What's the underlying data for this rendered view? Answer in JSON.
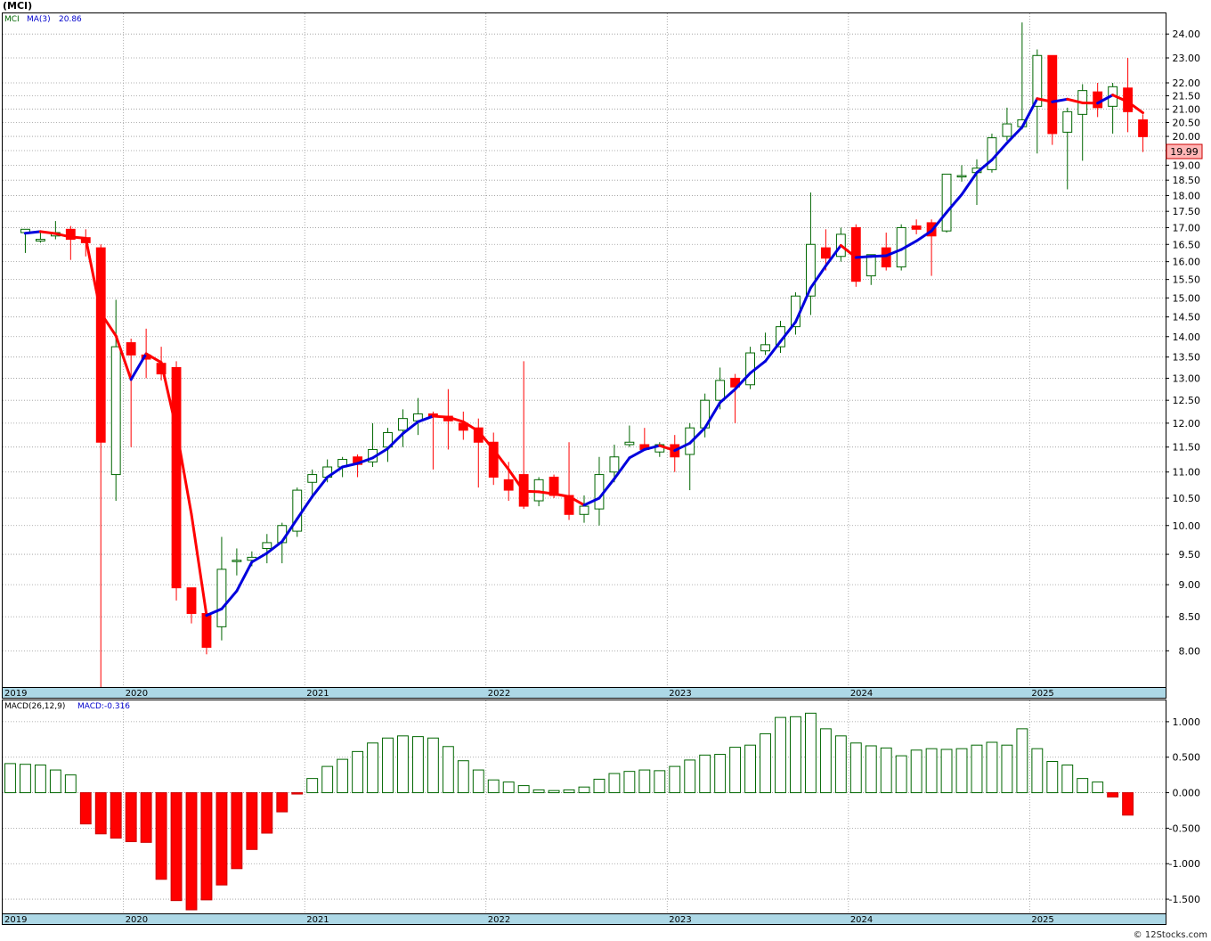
{
  "title": "(MCI)",
  "footer": "© 12Stocks.com",
  "price_panel": {
    "legend_symbol": "MCI",
    "legend_ma": "MA(3)",
    "legend_value": "20.86",
    "last_price": "19.99"
  },
  "macd_panel": {
    "legend_label": "MACD(26,12,9)",
    "legend_value": "MACD:-0.316"
  },
  "colors": {
    "up": "#006600",
    "down": "#ff0000",
    "ma_up": "#0000dd",
    "ma_down": "#ff0000",
    "axis_band": "#add8e6",
    "grid": "#999999"
  },
  "chart_data": [
    {
      "type": "candlestick",
      "title": "",
      "interval": "monthly",
      "y_scale": "log",
      "ylim": [
        7.5,
        24.9
      ],
      "y_ticks": [
        8.0,
        8.5,
        9.0,
        9.5,
        10.0,
        10.5,
        11.0,
        11.5,
        12.0,
        12.5,
        13.0,
        13.5,
        14.0,
        14.5,
        15.0,
        15.5,
        16.0,
        16.5,
        17.0,
        17.5,
        18.0,
        18.5,
        19.0,
        19.5,
        20.0,
        20.5,
        21.0,
        21.5,
        22.0,
        23.0,
        24.0
      ],
      "x_labels": [
        "2019",
        "2020",
        "2021",
        "2022",
        "2023",
        "2024",
        "2025"
      ],
      "ma_label": "MA(3)",
      "ma_last": 20.86,
      "grid": true,
      "candles": [
        [
          16.85,
          16.95,
          16.25,
          16.95
        ],
        [
          16.6,
          16.9,
          16.55,
          16.65
        ],
        [
          16.75,
          17.2,
          16.65,
          16.85
        ],
        [
          16.95,
          17.05,
          16.05,
          16.65
        ],
        [
          16.7,
          16.95,
          16.15,
          16.55
        ],
        [
          16.4,
          16.5,
          7.45,
          11.6
        ],
        [
          10.95,
          14.95,
          10.45,
          13.75
        ],
        [
          13.85,
          13.95,
          11.5,
          13.55
        ],
        [
          13.55,
          14.2,
          13.0,
          13.45
        ],
        [
          13.35,
          13.75,
          12.95,
          13.1
        ],
        [
          13.25,
          13.4,
          8.75,
          8.95
        ],
        [
          8.95,
          8.95,
          8.4,
          8.55
        ],
        [
          8.55,
          8.6,
          7.95,
          8.05
        ],
        [
          8.35,
          9.8,
          8.15,
          9.25
        ],
        [
          9.4,
          9.6,
          9.15,
          9.4
        ],
        [
          9.4,
          9.55,
          9.3,
          9.45
        ],
        [
          9.6,
          9.85,
          9.35,
          9.7
        ],
        [
          9.7,
          10.05,
          9.35,
          10.0
        ],
        [
          9.9,
          10.7,
          9.8,
          10.65
        ],
        [
          10.8,
          11.05,
          10.55,
          10.95
        ],
        [
          10.9,
          11.25,
          10.8,
          11.1
        ],
        [
          11.1,
          11.3,
          10.9,
          11.25
        ],
        [
          11.3,
          11.35,
          10.9,
          11.15
        ],
        [
          11.2,
          12.0,
          11.1,
          11.45
        ],
        [
          11.5,
          11.9,
          11.2,
          11.8
        ],
        [
          11.85,
          12.3,
          11.5,
          12.1
        ],
        [
          12.05,
          12.55,
          11.75,
          12.2
        ],
        [
          12.2,
          12.25,
          11.05,
          12.15
        ],
        [
          12.15,
          12.75,
          11.45,
          12.05
        ],
        [
          12.0,
          12.25,
          11.65,
          11.85
        ],
        [
          11.9,
          12.1,
          10.7,
          11.6
        ],
        [
          11.6,
          11.8,
          10.75,
          10.9
        ],
        [
          10.85,
          11.2,
          10.45,
          10.65
        ],
        [
          10.95,
          13.4,
          10.3,
          10.35
        ],
        [
          10.45,
          10.9,
          10.35,
          10.85
        ],
        [
          10.9,
          10.95,
          10.5,
          10.55
        ],
        [
          10.55,
          11.6,
          10.1,
          10.2
        ],
        [
          10.2,
          10.55,
          10.05,
          10.35
        ],
        [
          10.3,
          11.3,
          10.0,
          10.95
        ],
        [
          11.0,
          11.55,
          10.8,
          11.3
        ],
        [
          11.55,
          11.95,
          11.5,
          11.6
        ],
        [
          11.55,
          11.9,
          11.45,
          11.45
        ],
        [
          11.4,
          11.6,
          11.3,
          11.55
        ],
        [
          11.55,
          11.75,
          11.0,
          11.3
        ],
        [
          11.35,
          12.0,
          10.65,
          11.9
        ],
        [
          11.9,
          12.65,
          11.7,
          12.5
        ],
        [
          12.5,
          13.25,
          12.3,
          12.95
        ],
        [
          13.0,
          13.1,
          12.0,
          12.8
        ],
        [
          12.85,
          13.75,
          12.75,
          13.6
        ],
        [
          13.65,
          14.1,
          13.55,
          13.8
        ],
        [
          13.75,
          14.4,
          13.6,
          14.25
        ],
        [
          14.25,
          15.15,
          14.05,
          15.05
        ],
        [
          15.05,
          18.1,
          14.55,
          16.5
        ],
        [
          16.4,
          16.95,
          15.75,
          16.1
        ],
        [
          16.15,
          17.0,
          16.0,
          16.8
        ],
        [
          17.0,
          17.1,
          15.3,
          15.45
        ],
        [
          15.6,
          16.2,
          15.35,
          16.2
        ],
        [
          16.4,
          16.85,
          15.75,
          15.85
        ],
        [
          15.85,
          17.1,
          15.75,
          17.0
        ],
        [
          17.05,
          17.25,
          16.8,
          16.95
        ],
        [
          17.15,
          17.25,
          15.6,
          16.75
        ],
        [
          16.9,
          18.65,
          16.85,
          18.7
        ],
        [
          18.65,
          19.0,
          18.45,
          18.65
        ],
        [
          18.75,
          19.2,
          17.7,
          18.9
        ],
        [
          18.85,
          20.1,
          18.75,
          19.95
        ],
        [
          20.0,
          21.05,
          19.85,
          20.45
        ],
        [
          20.35,
          24.5,
          20.25,
          20.6
        ],
        [
          21.1,
          23.35,
          19.4,
          23.1
        ],
        [
          23.1,
          23.1,
          19.7,
          20.1
        ],
        [
          20.15,
          21.05,
          18.2,
          20.9
        ],
        [
          20.8,
          21.95,
          19.15,
          21.7
        ],
        [
          21.65,
          22.0,
          20.7,
          21.05
        ],
        [
          21.1,
          22.0,
          20.1,
          21.85
        ],
        [
          21.8,
          23.0,
          20.15,
          20.9
        ],
        [
          20.6,
          20.8,
          19.45,
          19.99
        ]
      ],
      "ma_values": [
        16.83,
        16.88,
        16.82,
        16.72,
        16.68,
        14.6,
        14.02,
        12.97,
        13.58,
        13.37,
        11.87,
        10.2,
        8.52,
        8.62,
        8.9,
        9.37,
        9.52,
        9.72,
        10.12,
        10.53,
        10.9,
        11.1,
        11.17,
        11.28,
        11.47,
        11.78,
        12.03,
        12.15,
        12.13,
        12.03,
        11.83,
        11.45,
        11.05,
        10.63,
        10.62,
        10.58,
        10.53,
        10.37,
        10.5,
        10.87,
        11.28,
        11.45,
        11.53,
        11.43,
        11.58,
        11.9,
        12.45,
        12.75,
        13.12,
        13.4,
        13.88,
        14.37,
        15.27,
        15.88,
        16.47,
        16.12,
        16.15,
        16.17,
        16.35,
        16.6,
        16.9,
        17.47,
        18.03,
        18.75,
        19.18,
        19.77,
        20.33,
        21.39,
        21.27,
        21.37,
        21.23,
        21.22,
        21.53,
        21.27,
        20.86
      ],
      "first_candle_date": "2019-06",
      "x_axis_start": "2019-05",
      "x_axis_end": "2025-10"
    },
    {
      "type": "bar",
      "title": "",
      "label": "MACD(26,12,9)",
      "ylim": [
        -1.7,
        1.3
      ],
      "y_ticks": [
        -1.5,
        -1.0,
        -0.5,
        0.0,
        0.5,
        1.0
      ],
      "x_labels": [
        "2019",
        "2020",
        "2021",
        "2022",
        "2023",
        "2024",
        "2025"
      ],
      "first_bar_date": "2019-05",
      "x_axis_end": "2025-10",
      "values": [
        0.41,
        0.4,
        0.39,
        0.32,
        0.25,
        -0.44,
        -0.58,
        -0.64,
        -0.69,
        -0.7,
        -1.22,
        -1.52,
        -1.65,
        -1.51,
        -1.3,
        -1.07,
        -0.8,
        -0.57,
        -0.27,
        -0.01,
        0.2,
        0.37,
        0.47,
        0.58,
        0.7,
        0.77,
        0.8,
        0.79,
        0.77,
        0.65,
        0.45,
        0.32,
        0.18,
        0.15,
        0.1,
        0.04,
        0.03,
        0.04,
        0.08,
        0.19,
        0.27,
        0.3,
        0.32,
        0.31,
        0.37,
        0.46,
        0.53,
        0.54,
        0.64,
        0.67,
        0.83,
        1.06,
        1.07,
        1.12,
        0.9,
        0.8,
        0.7,
        0.66,
        0.63,
        0.52,
        0.6,
        0.62,
        0.61,
        0.62,
        0.67,
        0.71,
        0.67,
        0.9,
        0.62,
        0.44,
        0.39,
        0.2,
        0.15,
        -0.06,
        -0.316
      ]
    }
  ]
}
